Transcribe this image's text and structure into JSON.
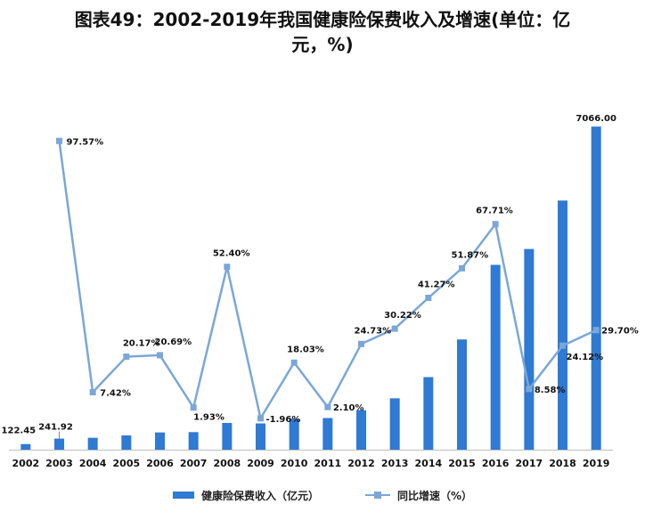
{
  "title_line1": "图表49：2002-2019年我国健康险保费收入及增速(单位：亿",
  "title_line2": "元，%)",
  "colors": {
    "bar": "#2e7ad4",
    "line": "#7aa7d8"
  },
  "legend": {
    "bar_label": "健康险保费收入（亿元）",
    "line_label": "同比增速（%）"
  },
  "chart_data": {
    "type": "bar",
    "categories": [
      "2002",
      "2003",
      "2004",
      "2005",
      "2006",
      "2007",
      "2008",
      "2009",
      "2010",
      "2011",
      "2012",
      "2013",
      "2014",
      "2015",
      "2016",
      "2017",
      "2018",
      "2019"
    ],
    "series": [
      {
        "name": "健康险保费收入（亿元）",
        "type": "bar",
        "axis": "left",
        "values": [
          122.45,
          241.92,
          260,
          312,
          377,
          384,
          585,
          574,
          677,
          692,
          863,
          1123,
          1587,
          2410,
          4042,
          4389,
          5448,
          7066.0
        ],
        "labels": [
          "122.45",
          "241.92",
          "",
          "",
          "",
          "",
          "",
          "",
          "",
          "",
          "",
          "",
          "",
          "",
          "",
          "",
          "",
          "7066.00"
        ]
      },
      {
        "name": "同比增速（%）",
        "type": "line",
        "axis": "right",
        "values": [
          null,
          97.57,
          7.42,
          20.17,
          20.69,
          1.93,
          52.4,
          -1.96,
          18.03,
          2.1,
          24.73,
          30.22,
          41.27,
          51.87,
          67.71,
          8.58,
          24.12,
          29.7
        ],
        "labels": [
          "",
          "97.57%",
          "7.42%",
          "20.17%",
          "20.69%",
          "1.93%",
          "52.40%",
          "-1.96%",
          "18.03%",
          "2.10%",
          "24.73%",
          "30.22%",
          "41.27%",
          "51.87%",
          "67.71%",
          "8.58%",
          "24.12%",
          "29.70%"
        ]
      }
    ],
    "ylim_left": [
      0,
      7400
    ],
    "ylim_right": [
      -10,
      105
    ],
    "grid": false,
    "legend_position": "bottom"
  }
}
